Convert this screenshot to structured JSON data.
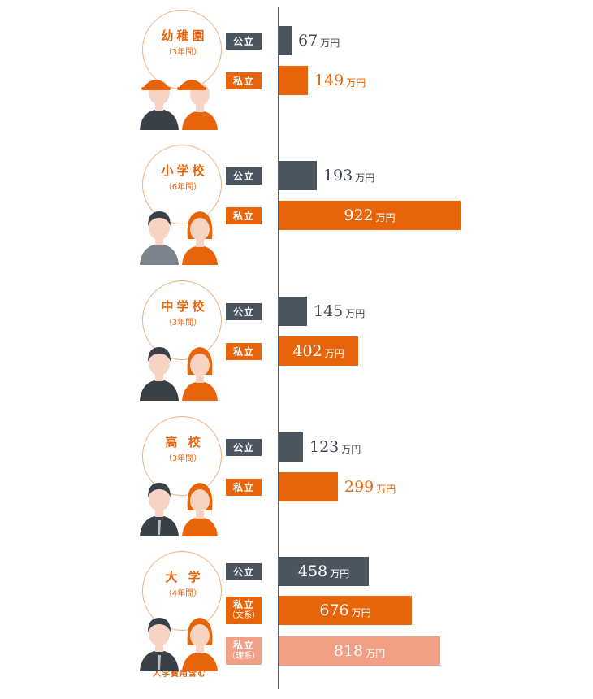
{
  "chart_data": {
    "type": "bar",
    "unit": "万円",
    "groups": [
      {
        "stage": "幼稚園",
        "years": "（3年間）",
        "rows": [
          {
            "badge": "公立",
            "badge_sub": "",
            "kind": "public",
            "value": 67
          },
          {
            "badge": "私立",
            "badge_sub": "",
            "kind": "private",
            "value": 149
          }
        ]
      },
      {
        "stage": "小学校",
        "years": "（6年間）",
        "rows": [
          {
            "badge": "公立",
            "badge_sub": "",
            "kind": "public",
            "value": 193
          },
          {
            "badge": "私立",
            "badge_sub": "",
            "kind": "private",
            "value": 922
          }
        ]
      },
      {
        "stage": "中学校",
        "years": "（3年間）",
        "rows": [
          {
            "badge": "公立",
            "badge_sub": "",
            "kind": "public",
            "value": 145
          },
          {
            "badge": "私立",
            "badge_sub": "",
            "kind": "private",
            "value": 402
          }
        ]
      },
      {
        "stage": "高 校",
        "years": "（3年間）",
        "rows": [
          {
            "badge": "公立",
            "badge_sub": "",
            "kind": "public",
            "value": 123
          },
          {
            "badge": "私立",
            "badge_sub": "",
            "kind": "private",
            "value": 299
          }
        ]
      },
      {
        "stage": "大 学",
        "years": "（4年間）",
        "rows": [
          {
            "badge": "公立",
            "badge_sub": "",
            "kind": "public",
            "value": 458
          },
          {
            "badge": "私立",
            "badge_sub": "（文系）",
            "kind": "private",
            "value": 676
          },
          {
            "badge": "私立",
            "badge_sub": "（理系）",
            "kind": "private-science",
            "value": 818
          }
        ]
      }
    ],
    "note": "入学費用含む"
  },
  "colors": {
    "public": "#4b5560",
    "private": "#e8640a",
    "private_science": "#f2a085",
    "accent": "#e8640a",
    "circle_border": "#f0b27e"
  },
  "icons": [
    "kindergarten-children-icon",
    "elementary-children-icon",
    "junior-high-students-icon",
    "high-school-students-icon",
    "university-students-icon"
  ]
}
